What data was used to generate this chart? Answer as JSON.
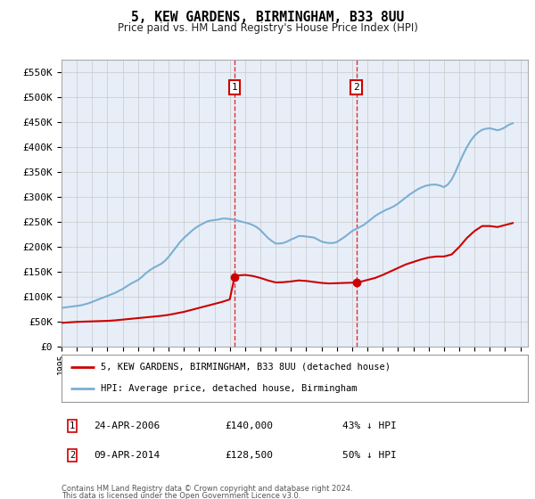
{
  "title": "5, KEW GARDENS, BIRMINGHAM, B33 8UU",
  "subtitle": "Price paid vs. HM Land Registry's House Price Index (HPI)",
  "ylim": [
    0,
    575000
  ],
  "yticks": [
    0,
    50000,
    100000,
    150000,
    200000,
    250000,
    300000,
    350000,
    400000,
    450000,
    500000,
    550000
  ],
  "ytick_labels": [
    "£0",
    "£50K",
    "£100K",
    "£150K",
    "£200K",
    "£250K",
    "£300K",
    "£350K",
    "£400K",
    "£450K",
    "£500K",
    "£550K"
  ],
  "xlim_start": 1995.0,
  "xlim_end": 2025.5,
  "background_color": "#ffffff",
  "plot_bg_color": "#e8eef8",
  "grid_color": "#c8c8c8",
  "hpi_color": "#7bafd4",
  "property_color": "#cc0000",
  "sale1_date": "24-APR-2006",
  "sale1_price": 140000,
  "sale1_price_str": "£140,000",
  "sale1_pct": "43%",
  "sale1_year": 2006.31,
  "sale2_date": "09-APR-2014",
  "sale2_price": 128500,
  "sale2_price_str": "£128,500",
  "sale2_pct": "50%",
  "sale2_year": 2014.27,
  "legend_line1": "5, KEW GARDENS, BIRMINGHAM, B33 8UU (detached house)",
  "legend_line2": "HPI: Average price, detached house, Birmingham",
  "footer1": "Contains HM Land Registry data © Crown copyright and database right 2024.",
  "footer2": "This data is licensed under the Open Government Licence v3.0.",
  "hpi_years": [
    1995.0,
    1995.25,
    1995.5,
    1995.75,
    1996.0,
    1996.25,
    1996.5,
    1996.75,
    1997.0,
    1997.25,
    1997.5,
    1997.75,
    1998.0,
    1998.25,
    1998.5,
    1998.75,
    1999.0,
    1999.25,
    1999.5,
    1999.75,
    2000.0,
    2000.25,
    2000.5,
    2000.75,
    2001.0,
    2001.25,
    2001.5,
    2001.75,
    2002.0,
    2002.25,
    2002.5,
    2002.75,
    2003.0,
    2003.25,
    2003.5,
    2003.75,
    2004.0,
    2004.25,
    2004.5,
    2004.75,
    2005.0,
    2005.25,
    2005.5,
    2005.75,
    2006.0,
    2006.25,
    2006.5,
    2006.75,
    2007.0,
    2007.25,
    2007.5,
    2007.75,
    2008.0,
    2008.25,
    2008.5,
    2008.75,
    2009.0,
    2009.25,
    2009.5,
    2009.75,
    2010.0,
    2010.25,
    2010.5,
    2010.75,
    2011.0,
    2011.25,
    2011.5,
    2011.75,
    2012.0,
    2012.25,
    2012.5,
    2012.75,
    2013.0,
    2013.25,
    2013.5,
    2013.75,
    2014.0,
    2014.25,
    2014.5,
    2014.75,
    2015.0,
    2015.25,
    2015.5,
    2015.75,
    2016.0,
    2016.25,
    2016.5,
    2016.75,
    2017.0,
    2017.25,
    2017.5,
    2017.75,
    2018.0,
    2018.25,
    2018.5,
    2018.75,
    2019.0,
    2019.25,
    2019.5,
    2019.75,
    2020.0,
    2020.25,
    2020.5,
    2020.75,
    2021.0,
    2021.25,
    2021.5,
    2021.75,
    2022.0,
    2022.25,
    2022.5,
    2022.75,
    2023.0,
    2023.25,
    2023.5,
    2023.75,
    2024.0,
    2024.25,
    2024.5
  ],
  "hpi_values": [
    78000,
    79000,
    80000,
    81000,
    82000,
    83000,
    85000,
    87000,
    90000,
    93000,
    96000,
    99000,
    102000,
    105000,
    108000,
    112000,
    116000,
    121000,
    126000,
    130000,
    134000,
    140000,
    147000,
    153000,
    158000,
    162000,
    166000,
    172000,
    180000,
    190000,
    200000,
    210000,
    218000,
    225000,
    232000,
    238000,
    243000,
    247000,
    251000,
    253000,
    254000,
    255000,
    257000,
    257000,
    256000,
    255000,
    253000,
    251000,
    249000,
    247000,
    244000,
    240000,
    234000,
    226000,
    218000,
    212000,
    207000,
    207000,
    208000,
    211000,
    215000,
    218000,
    222000,
    222000,
    221000,
    220000,
    219000,
    215000,
    211000,
    209000,
    208000,
    208000,
    210000,
    215000,
    220000,
    226000,
    232000,
    236000,
    240000,
    244000,
    250000,
    256000,
    262000,
    267000,
    271000,
    275000,
    278000,
    282000,
    287000,
    293000,
    299000,
    305000,
    310000,
    315000,
    319000,
    322000,
    324000,
    325000,
    325000,
    323000,
    320000,
    325000,
    335000,
    350000,
    368000,
    385000,
    400000,
    413000,
    423000,
    430000,
    435000,
    437000,
    438000,
    436000,
    434000,
    436000,
    440000,
    445000,
    448000
  ],
  "prop_years": [
    1995.0,
    1995.25,
    1995.5,
    1995.75,
    1996.0,
    1996.5,
    1997.0,
    1997.5,
    1998.0,
    1998.5,
    1999.0,
    1999.5,
    2000.0,
    2000.5,
    2001.0,
    2001.5,
    2002.0,
    2002.5,
    2003.0,
    2003.5,
    2004.0,
    2004.5,
    2005.0,
    2005.5,
    2006.0,
    2006.31,
    2006.5,
    2007.0,
    2007.5,
    2008.0,
    2008.5,
    2009.0,
    2009.5,
    2010.0,
    2010.5,
    2011.0,
    2011.5,
    2012.0,
    2012.5,
    2013.0,
    2013.5,
    2014.0,
    2014.27,
    2014.5,
    2015.0,
    2015.5,
    2016.0,
    2016.5,
    2017.0,
    2017.5,
    2018.0,
    2018.5,
    2019.0,
    2019.5,
    2020.0,
    2020.5,
    2021.0,
    2021.5,
    2022.0,
    2022.5,
    2023.0,
    2023.5,
    2024.0,
    2024.5
  ],
  "prop_values": [
    48000,
    48500,
    49000,
    49500,
    50000,
    50500,
    51000,
    51500,
    52000,
    53000,
    54500,
    56000,
    57500,
    59000,
    60500,
    62000,
    64000,
    67000,
    70000,
    74000,
    78000,
    82000,
    86000,
    90000,
    95000,
    140000,
    143000,
    144000,
    142000,
    138000,
    133000,
    129000,
    129500,
    131000,
    133000,
    132000,
    130000,
    128000,
    127000,
    127500,
    128000,
    128500,
    128500,
    130000,
    134000,
    138000,
    144000,
    151000,
    158000,
    165000,
    170000,
    175000,
    179000,
    181000,
    181000,
    185000,
    200000,
    218000,
    232000,
    242000,
    242000,
    240000,
    244000,
    248000
  ]
}
